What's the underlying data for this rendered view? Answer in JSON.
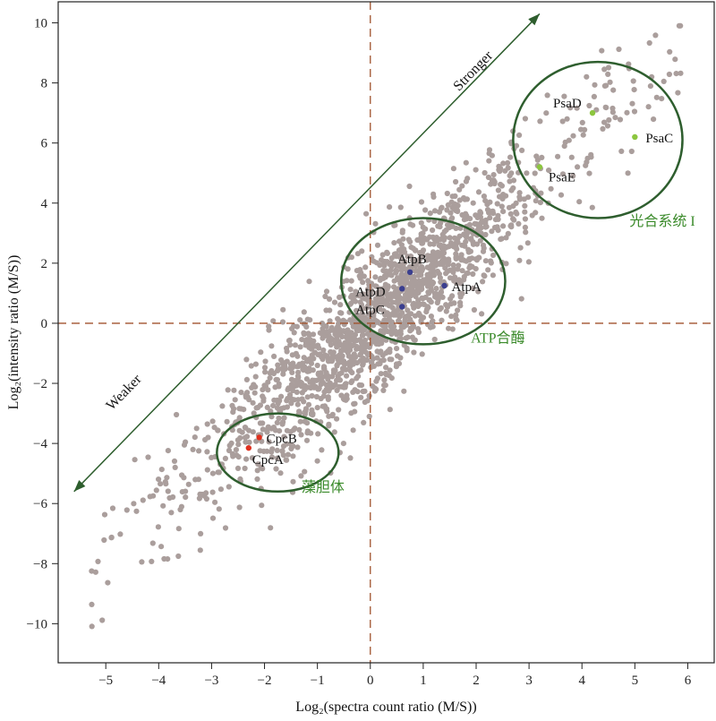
{
  "chart_data": {
    "type": "scatter",
    "title": "",
    "xlabel": "Log₂(spectra count ratio (M/S))",
    "ylabel": "Log₂(intensity ratio (M/S))",
    "xlim": [
      -5.9,
      6.5
    ],
    "ylim": [
      -11.3,
      10.7
    ],
    "x_ticks": [
      -5,
      -4,
      -3,
      -2,
      -1,
      0,
      1,
      2,
      3,
      4,
      5,
      6
    ],
    "y_ticks": [
      -10,
      -8,
      -6,
      -4,
      -2,
      0,
      2,
      4,
      6,
      8,
      10
    ],
    "reference_lines": {
      "x": 0,
      "y": 0,
      "style": "dashed",
      "color": "#a0522d"
    },
    "background_points": {
      "count": 1800,
      "color": "#aa9e9c",
      "trend": "positive linear correlation",
      "slope_approx": 1.55
    },
    "highlighted_points": [
      {
        "name": "PsaD",
        "x": 4.2,
        "y": 7.0,
        "color": "#8cc63f"
      },
      {
        "name": "PsaC",
        "x": 5.0,
        "y": 6.2,
        "color": "#8cc63f"
      },
      {
        "name": "PsaE",
        "x": 3.2,
        "y": 5.2,
        "color": "#8cc63f"
      },
      {
        "name": "AtpB",
        "x": 0.75,
        "y": 1.7,
        "color": "#3b3f8f"
      },
      {
        "name": "AtpA",
        "x": 1.4,
        "y": 1.25,
        "color": "#3b3f8f"
      },
      {
        "name": "AtpD",
        "x": 0.6,
        "y": 1.15,
        "color": "#3b3f8f"
      },
      {
        "name": "AtpC",
        "x": 0.6,
        "y": 0.55,
        "color": "#3b3f8f"
      },
      {
        "name": "CpcB",
        "x": -2.1,
        "y": -3.8,
        "color": "#e0301e"
      },
      {
        "name": "CpcA",
        "x": -2.3,
        "y": -4.15,
        "color": "#e0301e"
      }
    ],
    "groups": [
      {
        "label": "光合系统 I",
        "center": [
          4.3,
          6.1
        ],
        "radius": [
          1.6,
          2.6
        ],
        "color": "#2e5e2e",
        "label_color": "#3a8a2a"
      },
      {
        "label": "ATP合酶",
        "center": [
          1.0,
          1.4
        ],
        "radius": [
          1.55,
          2.1
        ],
        "color": "#2e5e2e",
        "label_color": "#3a8a2a"
      },
      {
        "label": "藻胆体",
        "center": [
          -1.75,
          -4.3
        ],
        "radius": [
          1.15,
          1.3
        ],
        "color": "#2e5e2e",
        "label_color": "#3a8a2a"
      }
    ],
    "arrow": {
      "from": [
        -5.6,
        -5.6
      ],
      "to": [
        3.2,
        10.3
      ],
      "color": "#2e5e2e",
      "upper_label": "Stronger",
      "lower_label": "Weaker"
    }
  }
}
